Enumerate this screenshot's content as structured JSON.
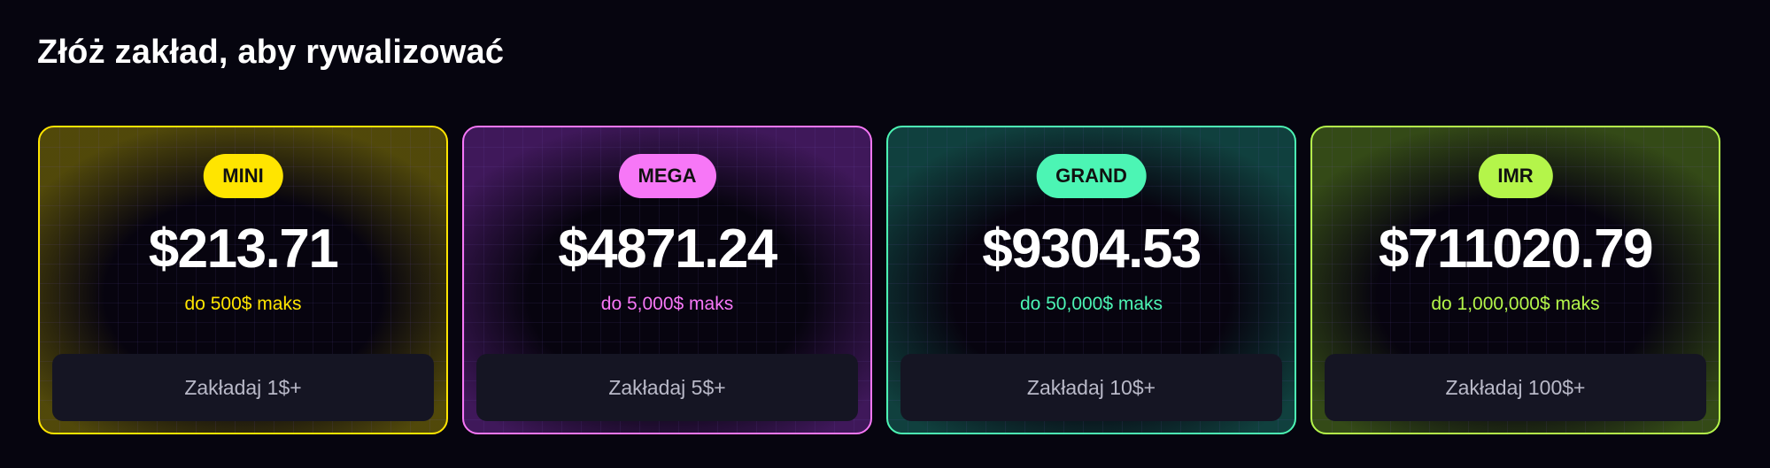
{
  "title": "Złóż zakład, aby rywalizować",
  "cards": [
    {
      "badge": "MINI",
      "amount": "$213.71",
      "limit": "do 500$ maks",
      "button": "Zakładaj 1$+",
      "color": "#ffe500"
    },
    {
      "badge": "MEGA",
      "amount": "$4871.24",
      "limit": "do 5,000$ maks",
      "button": "Zakładaj 5$+",
      "color": "#f777f7"
    },
    {
      "badge": "GRAND",
      "amount": "$9304.53",
      "limit": "do 50,000$ maks",
      "button": "Zakładaj 10$+",
      "color": "#4cf5b4"
    },
    {
      "badge": "IMR",
      "amount": "$711020.79",
      "limit": "do 1,000,000$ maks",
      "button": "Zakładaj 100$+",
      "color": "#b4f54a"
    }
  ]
}
